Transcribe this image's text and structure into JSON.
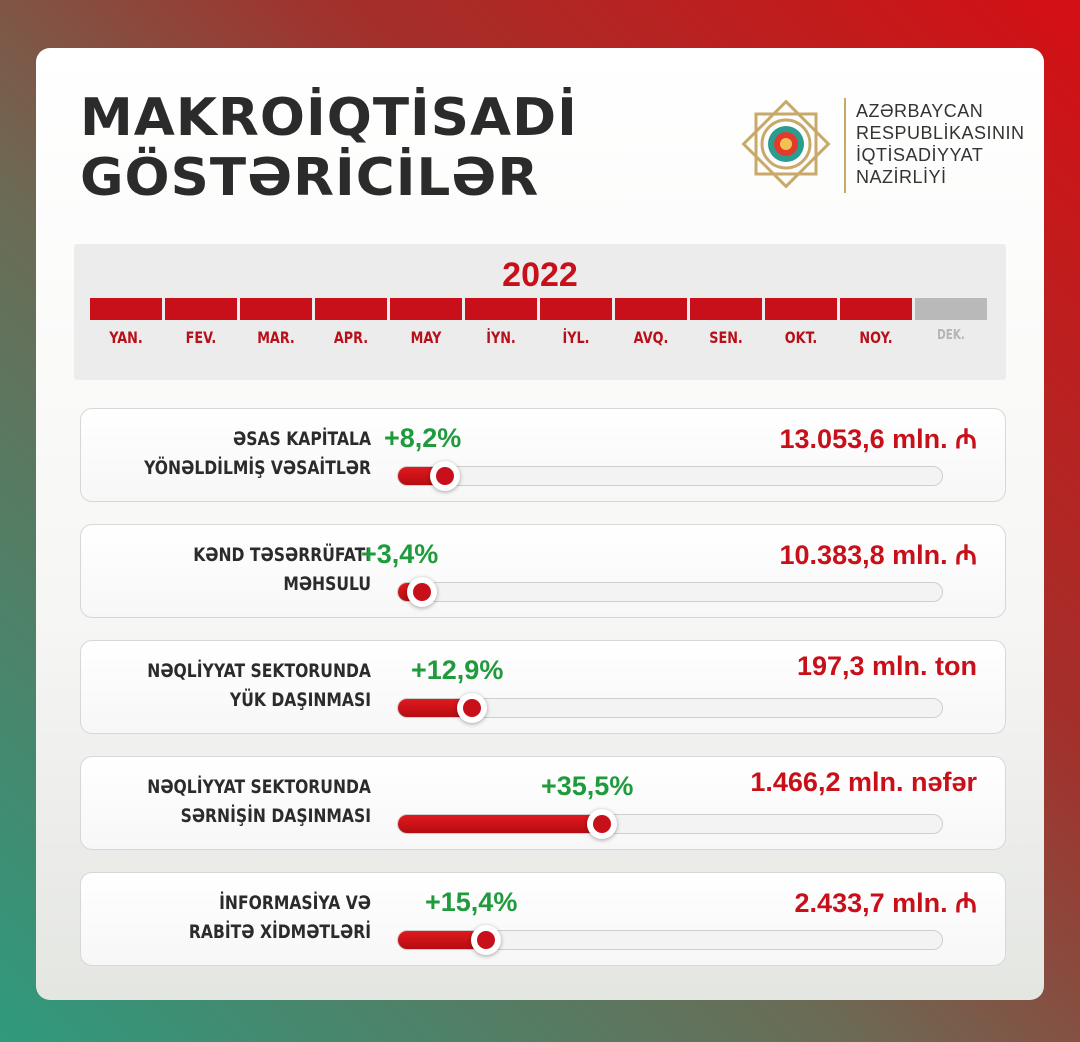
{
  "title": {
    "line1": "MAKROİQTİSADİ",
    "line2": "GÖSTƏRİCİLƏR"
  },
  "ministry": {
    "line1": "AZƏRBAYCAN",
    "line2": "RESPUBLİKASININ",
    "line3": "İQTİSADİYYAT",
    "line4": "NAZİRLİYİ",
    "emblem_icon": "azerbaijan-emblem-icon"
  },
  "timeline": {
    "year": "2022",
    "months": [
      {
        "label": "YAN.",
        "active": true
      },
      {
        "label": "FEV.",
        "active": true
      },
      {
        "label": "MAR.",
        "active": true
      },
      {
        "label": "APR.",
        "active": true
      },
      {
        "label": "MAY",
        "active": true
      },
      {
        "label": "İYN.",
        "active": true
      },
      {
        "label": "İYL.",
        "active": true
      },
      {
        "label": "AVQ.",
        "active": true
      },
      {
        "label": "SEN.",
        "active": true
      },
      {
        "label": "OKT.",
        "active": true
      },
      {
        "label": "NOY.",
        "active": true
      },
      {
        "label": "DEK.",
        "active": false
      }
    ]
  },
  "indicators": [
    {
      "label1": "ƏSAS KAPİTALA",
      "label2": "YÖNƏLDİLMİŞ VƏSAİTLƏR",
      "change": "+8,2%",
      "value": "13.053,6 mln. ₼",
      "level": 0.082
    },
    {
      "label1": "KƏND TƏSƏRRÜFATI",
      "label2": "MƏHSULU",
      "change": "+3,4%",
      "value": "10.383,8 mln. ₼",
      "level": 0.034
    },
    {
      "label1": "NƏQLİYYAT SEKTORUNDA",
      "label2": "YÜK DAŞINMASI",
      "change": "+12,9%",
      "value": "197,3 mln. ton",
      "level": 0.129
    },
    {
      "label1": "NƏQLİYYAT SEKTORUNDA",
      "label2": "SƏRNİŞİN DAŞINMASI",
      "change": "+35,5%",
      "value": "1.466,2 mln. nəfər",
      "level": 0.355
    },
    {
      "label1": "İNFORMASİYA VƏ",
      "label2": "RABİTƏ XİDMƏTLƏRİ",
      "change": "+15,4%",
      "value": "2.433,7 mln. ₼",
      "level": 0.154
    }
  ],
  "colors": {
    "accent": "#c8101a",
    "positive": "#1f9a3d",
    "inactive": "#b9b9b9"
  }
}
